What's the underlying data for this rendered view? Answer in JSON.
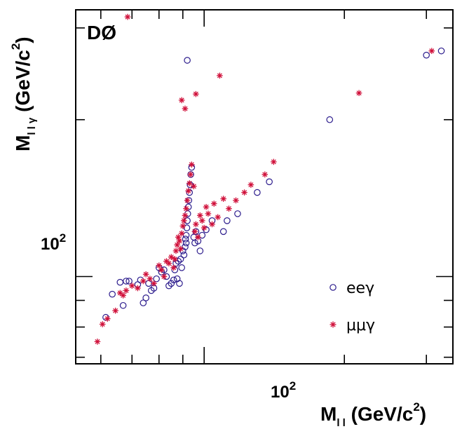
{
  "brand": "DØ",
  "chart_data": {
    "type": "scatter",
    "title": "",
    "xlabel": {
      "main": "M",
      "sub": "l l",
      "unit_open": " (GeV/c",
      "unit_exp": "2",
      "unit_close": ")"
    },
    "ylabel": {
      "main": "M",
      "sub": "l l γ",
      "unit_open": " (GeV/c",
      "unit_exp": "2",
      "unit_close": ")"
    },
    "x_scale": "log",
    "y_scale": "log",
    "xlim": [
      53,
      342
    ],
    "ylim": [
      68,
      325
    ],
    "major_ticks": [
      {
        "value": 100,
        "base": "10",
        "exp": "2"
      }
    ],
    "minor_ticks_x": [
      60,
      70,
      80,
      90,
      200,
      300
    ],
    "minor_ticks_y": [
      70,
      80,
      90,
      200,
      300
    ],
    "legend": {
      "position": "bottom-right"
    },
    "series": [
      {
        "name": "eeγ",
        "marker": "open-circle",
        "color": "#2b1b8c",
        "points": [
          [
            61.5,
            83.5
          ],
          [
            63.5,
            92.5
          ],
          [
            66,
            97.5
          ],
          [
            67,
            88
          ],
          [
            68,
            98
          ],
          [
            69,
            98
          ],
          [
            72,
            96.5
          ],
          [
            73,
            98.5
          ],
          [
            74,
            89
          ],
          [
            75,
            91
          ],
          [
            76,
            97
          ],
          [
            77,
            94
          ],
          [
            78,
            95
          ],
          [
            79,
            99
          ],
          [
            80,
            104
          ],
          [
            81,
            102
          ],
          [
            82,
            103
          ],
          [
            83,
            100
          ],
          [
            84,
            96
          ],
          [
            85,
            97
          ],
          [
            86,
            98.5
          ],
          [
            86.5,
            103
          ],
          [
            87,
            106
          ],
          [
            87.5,
            99
          ],
          [
            88,
            107
          ],
          [
            88.5,
            97
          ],
          [
            89,
            108
          ],
          [
            89.5,
            104
          ],
          [
            90,
            112
          ],
          [
            90.5,
            110
          ],
          [
            91,
            114
          ],
          [
            91.2,
            118
          ],
          [
            91.5,
            120
          ],
          [
            91.8,
            124
          ],
          [
            92,
            128
          ],
          [
            92.2,
            132
          ],
          [
            92.5,
            136
          ],
          [
            92.7,
            140
          ],
          [
            93,
            145
          ],
          [
            93.3,
            150
          ],
          [
            93.6,
            157
          ],
          [
            94,
            162
          ],
          [
            92,
            260
          ],
          [
            95,
            119
          ],
          [
            95.5,
            116
          ],
          [
            96,
            122
          ],
          [
            97,
            117
          ],
          [
            98,
            112
          ],
          [
            99,
            120
          ],
          [
            101,
            123
          ],
          [
            104,
            128
          ],
          [
            110,
            122
          ],
          [
            112,
            128
          ],
          [
            118,
            132
          ],
          [
            130,
            145
          ],
          [
            138,
            152
          ],
          [
            186,
            200
          ],
          [
            300,
            266
          ],
          [
            323,
            271
          ],
          [
            91.5,
            116
          ]
        ]
      },
      {
        "name": "μμγ",
        "marker": "star",
        "color": "#d0103a",
        "points": [
          [
            59,
            75
          ],
          [
            60.5,
            81
          ],
          [
            62,
            83
          ],
          [
            64.5,
            86
          ],
          [
            66,
            93
          ],
          [
            67,
            92
          ],
          [
            68,
            94
          ],
          [
            70,
            96
          ],
          [
            72,
            95
          ],
          [
            74,
            98
          ],
          [
            75,
            101
          ],
          [
            76.5,
            99
          ],
          [
            78,
            97
          ],
          [
            80,
            105
          ],
          [
            81,
            103
          ],
          [
            82,
            100
          ],
          [
            83,
            107
          ],
          [
            84,
            106
          ],
          [
            85,
            109
          ],
          [
            86,
            104
          ],
          [
            86.5,
            108
          ],
          [
            87,
            112
          ],
          [
            87.5,
            115
          ],
          [
            88,
            119
          ],
          [
            88.5,
            117
          ],
          [
            89,
            113
          ],
          [
            89.5,
            121
          ],
          [
            90,
            125
          ],
          [
            90.5,
            128
          ],
          [
            91,
            131
          ],
          [
            91.5,
            135
          ],
          [
            92,
            140
          ],
          [
            92.5,
            146
          ],
          [
            93,
            151
          ],
          [
            93.5,
            157
          ],
          [
            94,
            164
          ],
          [
            95,
            149
          ],
          [
            95.5,
            122
          ],
          [
            96,
            126
          ],
          [
            97,
            119
          ],
          [
            98,
            131
          ],
          [
            99,
            128
          ],
          [
            100,
            124
          ],
          [
            101,
            136
          ],
          [
            102,
            132
          ],
          [
            104,
            126
          ],
          [
            105,
            138
          ],
          [
            107,
            130
          ],
          [
            110,
            141
          ],
          [
            113,
            135
          ],
          [
            117,
            140
          ],
          [
            122,
            145
          ],
          [
            126,
            150
          ],
          [
            135,
            157
          ],
          [
            141,
            166
          ],
          [
            68.5,
            315
          ],
          [
            91,
            210
          ],
          [
            89.5,
            218
          ],
          [
            96,
            224
          ],
          [
            108,
            243
          ],
          [
            215,
            225
          ],
          [
            308,
            271
          ]
        ]
      }
    ]
  }
}
